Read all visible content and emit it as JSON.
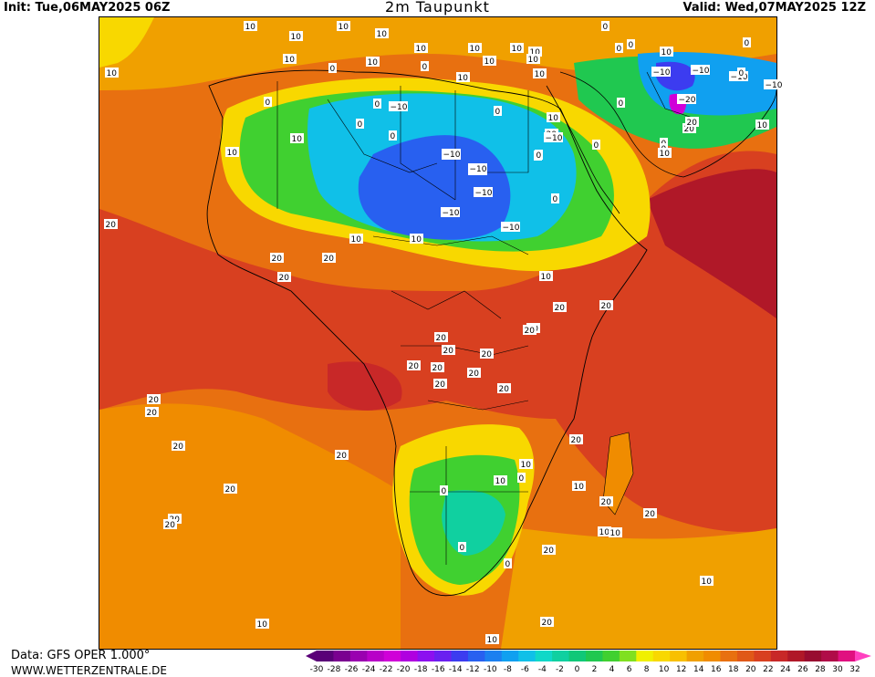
{
  "header": {
    "init": "Init: Tue,06MAY2025 06Z",
    "title": "2m Taupunkt",
    "valid": "Valid: Wed,07MAY2025 12Z"
  },
  "footer": {
    "data": "Data: GFS OPER 1.000°",
    "site": "WWW.WETTERZENTRALE.DE"
  },
  "colorbar": {
    "ticks": [
      "-30",
      "-28",
      "-26",
      "-24",
      "-22",
      "-20",
      "-18",
      "-16",
      "-14",
      "-12",
      "-10",
      "-8",
      "-6",
      "-4",
      "-2",
      "0",
      "2",
      "4",
      "6",
      "8",
      "10",
      "12",
      "14",
      "16",
      "18",
      "20",
      "22",
      "24",
      "26",
      "28",
      "30",
      "32"
    ],
    "colors": [
      "#5a0078",
      "#7a0090",
      "#9a00b0",
      "#b800c8",
      "#d000d8",
      "#b000e0",
      "#8c10f0",
      "#6a20f0",
      "#3c3cf0",
      "#2860f0",
      "#1c80f0",
      "#10a0f0",
      "#10c0e8",
      "#10d8c8",
      "#10d0a0",
      "#10c878",
      "#20c850",
      "#40d030",
      "#80e020",
      "#f0f000",
      "#f8d800",
      "#f8c000",
      "#f0a000",
      "#f08c00",
      "#e87010",
      "#e05818",
      "#d84020",
      "#c82828",
      "#b01828",
      "#980c30",
      "#b00c48",
      "#e01080"
    ],
    "over_color": "#ff40c0"
  },
  "map": {
    "contour_labels": [
      {
        "t": "10"
      },
      {
        "t": "10"
      },
      {
        "t": "10"
      },
      {
        "t": "10"
      },
      {
        "t": "10"
      },
      {
        "t": "10"
      },
      {
        "t": "10"
      },
      {
        "t": "10"
      },
      {
        "t": "0"
      },
      {
        "t": "0"
      },
      {
        "t": "10"
      },
      {
        "t": "10"
      },
      {
        "t": "0"
      },
      {
        "t": "0"
      },
      {
        "t": "10"
      },
      {
        "t": "10"
      },
      {
        "t": "0"
      },
      {
        "t": "10"
      },
      {
        "t": "10"
      },
      {
        "t": "10"
      },
      {
        "t": "0"
      },
      {
        "t": "0"
      },
      {
        "t": "−10"
      },
      {
        "t": "−10"
      },
      {
        "t": "−10"
      },
      {
        "t": "−10"
      },
      {
        "t": "−20"
      },
      {
        "t": "0"
      },
      {
        "t": "10"
      },
      {
        "t": "−10"
      },
      {
        "t": "0"
      },
      {
        "t": "0"
      },
      {
        "t": "0"
      },
      {
        "t": "10"
      },
      {
        "t": "0"
      },
      {
        "t": "20"
      },
      {
        "t": "0"
      },
      {
        "t": "0"
      },
      {
        "t": "−10"
      },
      {
        "t": "10"
      },
      {
        "t": "20"
      },
      {
        "t": "0"
      },
      {
        "t": "10"
      },
      {
        "t": "0"
      },
      {
        "t": "−10"
      },
      {
        "t": "0"
      },
      {
        "t": "−10"
      },
      {
        "t": "20"
      },
      {
        "t": "10"
      },
      {
        "t": "0"
      },
      {
        "t": "10"
      },
      {
        "t": "−10"
      },
      {
        "t": "−10"
      },
      {
        "t": "−10"
      },
      {
        "t": "0"
      },
      {
        "t": "−10"
      },
      {
        "t": "−10"
      },
      {
        "t": "20"
      },
      {
        "t": "10"
      },
      {
        "t": "10"
      },
      {
        "t": "20"
      },
      {
        "t": "20"
      },
      {
        "t": "20"
      },
      {
        "t": "10"
      },
      {
        "t": "20"
      },
      {
        "t": "20"
      },
      {
        "t": "20"
      },
      {
        "t": "20"
      },
      {
        "t": "20"
      },
      {
        "t": "20"
      },
      {
        "t": "20"
      },
      {
        "t": "20"
      },
      {
        "t": "20"
      },
      {
        "t": "20"
      },
      {
        "t": "20"
      },
      {
        "t": "20"
      },
      {
        "t": "20"
      },
      {
        "t": "20"
      },
      {
        "t": "20"
      },
      {
        "t": "20"
      },
      {
        "t": "20"
      },
      {
        "t": "20"
      },
      {
        "t": "20"
      },
      {
        "t": "20"
      },
      {
        "t": "10"
      },
      {
        "t": "10"
      },
      {
        "t": "0"
      },
      {
        "t": "0"
      },
      {
        "t": "0"
      },
      {
        "t": "0"
      },
      {
        "t": "20"
      },
      {
        "t": "20"
      },
      {
        "t": "20"
      },
      {
        "t": "10"
      },
      {
        "t": "10"
      },
      {
        "t": "10"
      },
      {
        "t": "20"
      },
      {
        "t": "10"
      },
      {
        "t": "10"
      },
      {
        "t": "10"
      }
    ]
  }
}
